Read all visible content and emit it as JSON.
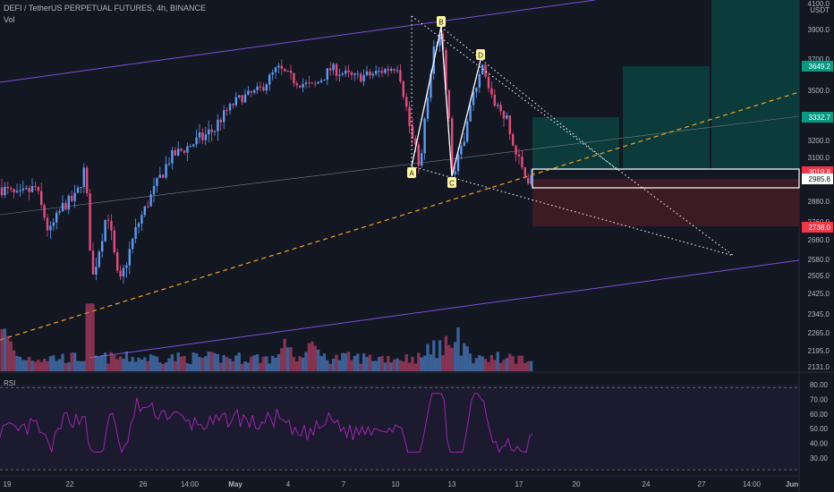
{
  "header": {
    "title": "DEFI / TetherUS PERPETUAL FUTURES, 4h, BINANCE",
    "volume_label": "Vol"
  },
  "rsi_label": "RSI",
  "price_axis": {
    "ticks": [
      "4100.0",
      "3900.0",
      "3700.0",
      "3500.0",
      "3300.0",
      "3200.0",
      "3100.0",
      "2880.0",
      "2760.0",
      "2680.0",
      "2580.0",
      "2505.0",
      "2425.0",
      "2345.0",
      "2265.0",
      "2195.0",
      "2131.0"
    ],
    "unit": "USDT"
  },
  "rsi_axis": {
    "ticks": [
      "80.00",
      "70.00",
      "60.00",
      "50.00",
      "40.00",
      "30.00"
    ]
  },
  "time_axis": {
    "ticks": [
      "19",
      "22",
      "26",
      "14:00",
      "May",
      "4",
      "7",
      "10",
      "13",
      "17",
      "20",
      "24",
      "27",
      "14:00",
      "Jun"
    ]
  },
  "price_labels": [
    {
      "text": "3649.2",
      "role": "target-high",
      "color": "#089981"
    },
    {
      "text": "3332.7",
      "role": "target-mid",
      "color": "#089981"
    },
    {
      "text": "3019.8",
      "role": "current",
      "color": "#f23645"
    },
    {
      "text": "2985.8",
      "role": "entry",
      "color": "#ffffff"
    },
    {
      "text": "2738.0",
      "role": "stop",
      "color": "#f23645"
    }
  ],
  "pattern_points": [
    "A",
    "B",
    "C",
    "D"
  ],
  "colors": {
    "background": "#131722",
    "up": "#5b9cf6",
    "down": "#e84a7a",
    "channel": "#7b4fd6",
    "trend": "#f7a21b",
    "rsi": "#9c27b0",
    "target_zone": "#0b3b3a",
    "stop_zone": "#3c1b25"
  },
  "chart_data": {
    "type": "candlestick",
    "title": "DEFI / TetherUS PERPETUAL FUTURES, 4h, BINANCE",
    "ylim": [
      2100,
      4100
    ],
    "x": [
      "19",
      "22",
      "26",
      "May",
      "4",
      "7",
      "10",
      "13",
      "17"
    ],
    "close": [
      2950,
      2760,
      2500,
      2950,
      3600,
      3630,
      3650,
      3050,
      3020
    ],
    "high_points": {
      "A": 3020,
      "B": 3860,
      "C": 2955,
      "D": 3670
    },
    "levels": {
      "target_high": 3649.2,
      "target_mid": 3332.7,
      "entry": 2985.8,
      "current": 3019.8,
      "stop": 2738.0
    },
    "rsi_range": [
      30,
      80
    ]
  }
}
